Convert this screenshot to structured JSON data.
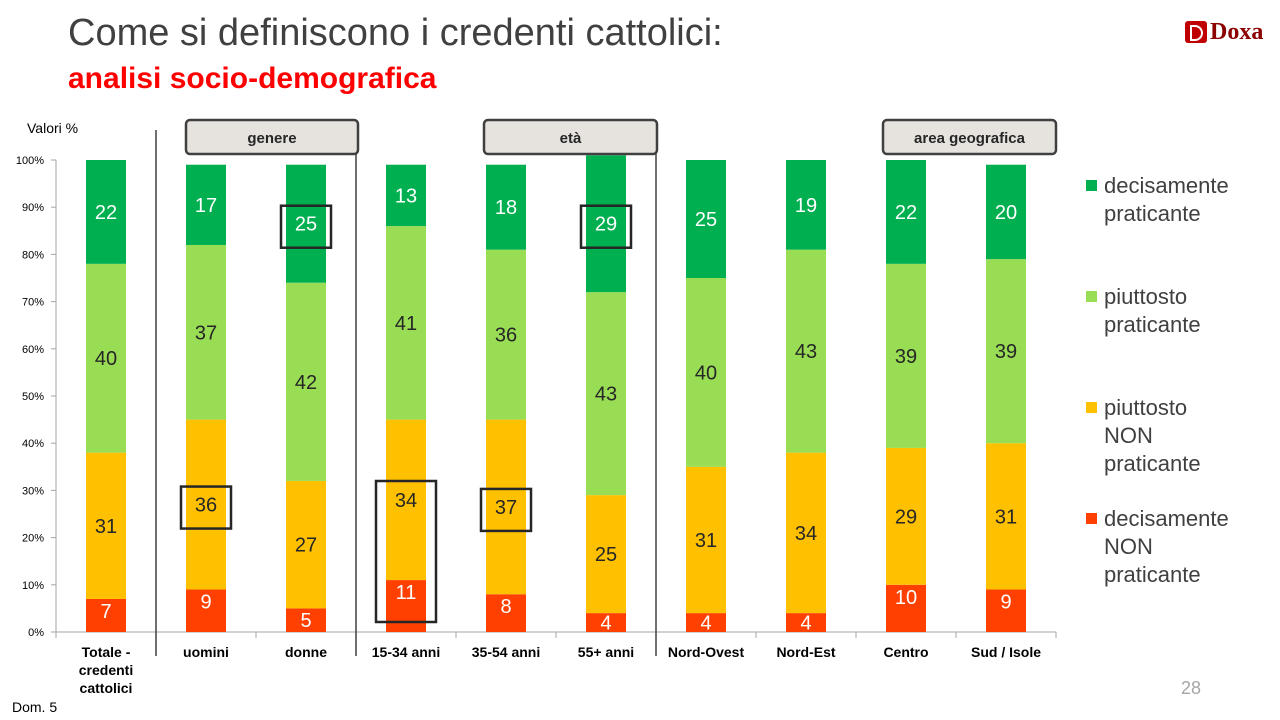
{
  "header": {
    "title": "Come si definiscono i credenti cattolici:",
    "subtitle": "analisi socio-demografica",
    "logo_text": "Doxa"
  },
  "footer": {
    "note": "Dom. 5",
    "page_number": "28"
  },
  "chart_data": {
    "type": "bar",
    "stacked": true,
    "ylabel": "Valori %",
    "ylim": [
      0,
      100
    ],
    "yticks": [
      "0%",
      "10%",
      "20%",
      "30%",
      "40%",
      "50%",
      "60%",
      "70%",
      "80%",
      "90%",
      "100%"
    ],
    "categories": [
      "Totale - credenti cattolici",
      "uomini",
      "donne",
      "15-34 anni",
      "35-54 anni",
      "55+ anni",
      "Nord-Ovest",
      "Nord-Est",
      "Centro",
      "Sud / Isole"
    ],
    "category_lines": [
      [
        "Totale -",
        "credenti",
        "cattolici"
      ],
      [
        "uomini"
      ],
      [
        "donne"
      ],
      [
        "15-34 anni"
      ],
      [
        "35-54 anni"
      ],
      [
        "55+ anni"
      ],
      [
        "Nord-Ovest"
      ],
      [
        "Nord-Est"
      ],
      [
        "Centro"
      ],
      [
        "Sud / Isole"
      ]
    ],
    "groups": [
      {
        "label": "genere",
        "categories": [
          1,
          2
        ]
      },
      {
        "label": "età",
        "categories": [
          3,
          4,
          5
        ]
      },
      {
        "label": "area geografica",
        "categories": [
          6,
          7,
          8,
          9
        ]
      }
    ],
    "series": [
      {
        "name": "decisamente NON praticante",
        "color": "#ff4000",
        "values": [
          7,
          9,
          5,
          11,
          8,
          4,
          4,
          4,
          10,
          9
        ]
      },
      {
        "name": "piuttosto NON praticante",
        "color": "#ffc000",
        "values": [
          31,
          36,
          27,
          34,
          37,
          25,
          31,
          34,
          29,
          31
        ]
      },
      {
        "name": "piuttosto praticante",
        "color": "#99dd55",
        "values": [
          40,
          37,
          42,
          41,
          36,
          43,
          40,
          43,
          39,
          39
        ]
      },
      {
        "name": "decisamente praticante",
        "color": "#00b050",
        "values": [
          22,
          17,
          25,
          13,
          18,
          29,
          25,
          19,
          22,
          20
        ]
      }
    ],
    "highlighted": [
      {
        "series": 3,
        "category": 2
      },
      {
        "series": 3,
        "category": 5
      },
      {
        "series": 1,
        "category": 1
      },
      {
        "series": 1,
        "category": 4
      },
      {
        "series": 1,
        "category": 3
      },
      {
        "series": 0,
        "category": 3
      }
    ],
    "legend": [
      {
        "series": 3,
        "lines": [
          "decisamente",
          "praticante"
        ]
      },
      {
        "series": 2,
        "lines": [
          "piuttosto",
          "praticante"
        ]
      },
      {
        "series": 1,
        "lines": [
          "piuttosto",
          "NON",
          "praticante"
        ]
      },
      {
        "series": 0,
        "lines": [
          "decisamente",
          "NON",
          "praticante"
        ]
      }
    ],
    "legend_placement": "right"
  }
}
